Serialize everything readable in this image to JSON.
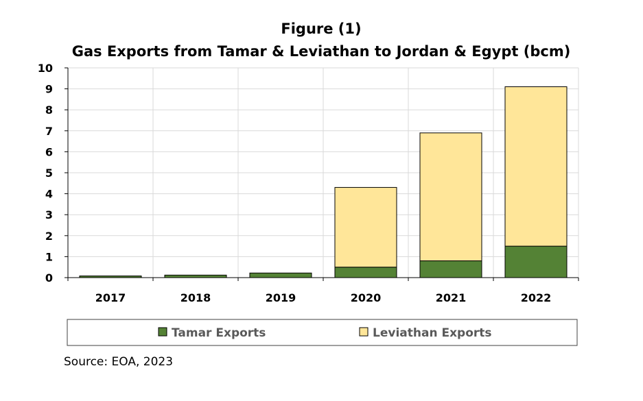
{
  "chart_data": {
    "type": "bar",
    "stacked": true,
    "title": "Figure (1)",
    "subtitle": "Gas Exports from Tamar & Leviathan to Jordan & Egypt (bcm)",
    "categories": [
      "2017",
      "2018",
      "2019",
      "2020",
      "2021",
      "2022"
    ],
    "series": [
      {
        "name": "Tamar Exports",
        "color": "#548235",
        "values": [
          0.08,
          0.12,
          0.22,
          0.5,
          0.8,
          1.5
        ]
      },
      {
        "name": "Leviathan Exports",
        "color": "#FFE699",
        "values": [
          0,
          0,
          0,
          3.8,
          6.1,
          7.6
        ]
      }
    ],
    "ylim": [
      0,
      10
    ],
    "yticks": [
      0,
      1,
      2,
      3,
      4,
      5,
      6,
      7,
      8,
      9,
      10
    ],
    "xlabel": "",
    "ylabel": "",
    "grid": true,
    "legend_position": "bottom",
    "source": "Source: EOA, 2023"
  }
}
